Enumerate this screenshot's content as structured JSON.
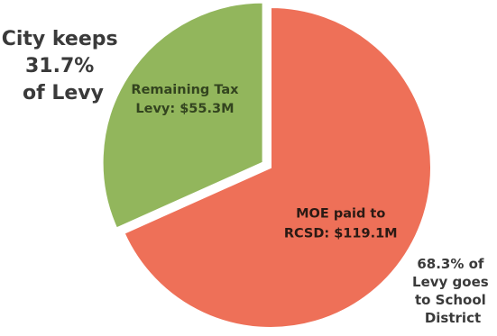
{
  "chart_data": {
    "type": "pie",
    "slices": [
      {
        "label_lines": [
          "MOE paid to",
          "RCSD: $119.1M"
        ],
        "value": 119.1,
        "color": "#ee7058",
        "label_color": "#2b1a14"
      },
      {
        "label_lines": [
          "Remaining Tax",
          "Levy: $55.3M"
        ],
        "value": 55.3,
        "color": "#92b65c",
        "label_color": "#33441f"
      }
    ],
    "exploded_slice": 1,
    "annotations": [
      {
        "lines": [
          "City keeps",
          "31.7%",
          "of Levy"
        ]
      },
      {
        "lines": [
          "68.3% of",
          "Levy goes",
          "to School",
          "District"
        ]
      }
    ]
  }
}
